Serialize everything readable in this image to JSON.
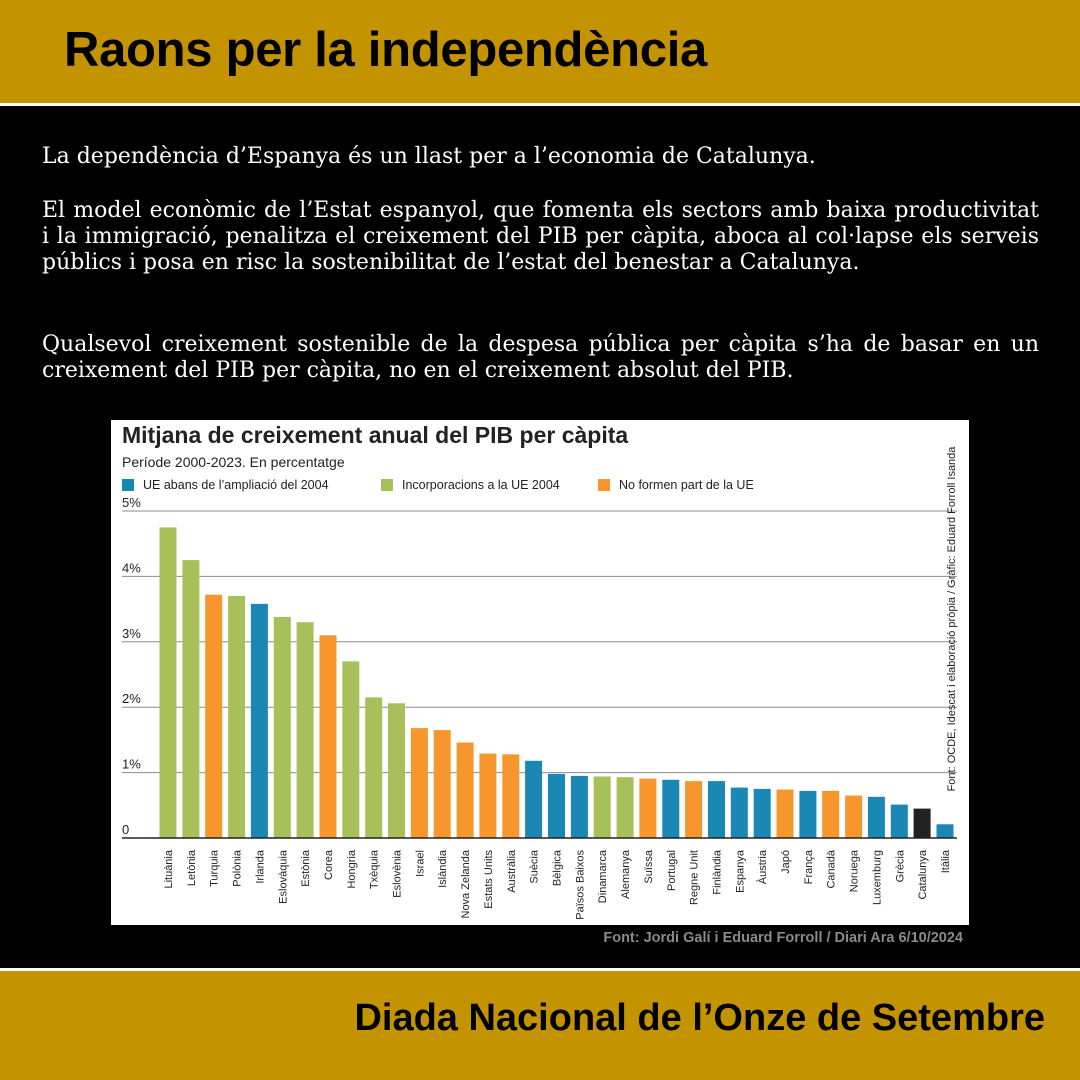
{
  "header": {
    "title": "Raons per la independència"
  },
  "paragraphs": [
    "La dependència d’Espanya és un llast per a l’economia de Catalunya.",
    "El model econòmic de l’Estat espanyol, que fomenta els sectors amb baixa productivitat i la immigració, penalitza el creixement del PIB per càpita, aboca al col·lapse els serveis públics i posa en risc la sostenibilitat de l’estat del benestar a Catalunya.",
    "Qualsevol creixement sostenible de la despesa pública per càpita s’ha de basar en un creixement del PIB per càpita, no en el creixement absolut del PIB."
  ],
  "chart_data": {
    "type": "bar",
    "title": "Mitjana de creixement anual del PIB per càpita",
    "subtitle": "Període 2000-2023. En percentatge",
    "source_vertical": "Font: OCDE, Idescat i elaboració pròpia / Gràfic: Eduard Forroll Isanda",
    "ylim": [
      0,
      5
    ],
    "yticks": [
      0,
      1,
      2,
      3,
      4,
      5
    ],
    "ytick_labels": [
      "0",
      "1%",
      "2%",
      "3%",
      "4%",
      "5%"
    ],
    "grid": true,
    "legend_position": "top-left",
    "groups": [
      {
        "key": "eu",
        "label": "UE abans de l’ampliació del 2004",
        "color": "#1a87b4"
      },
      {
        "key": "new",
        "label": "Incorporacions a la UE 2004",
        "color": "#a8c059"
      },
      {
        "key": "non",
        "label": "No formen part de la UE",
        "color": "#f7962d"
      },
      {
        "key": "cat",
        "label": "",
        "color": "#222222"
      }
    ],
    "categories": [
      "Lituània",
      "Letònia",
      "Turquia",
      "Polònia",
      "Irlanda",
      "Eslovàquia",
      "Estònia",
      "Corea",
      "Hongria",
      "Txèquia",
      "Eslovènia",
      "Israel",
      "Islàndia",
      "Nova Zelanda",
      "Estats Units",
      "Austràlia",
      "Suècia",
      "Bèlgica",
      "Països Baixos",
      "Dinamarca",
      "Alemanya",
      "Suïssa",
      "Portugal",
      "Regne Unit",
      "Finlàndia",
      "Espanya",
      "Àustria",
      "Japó",
      "França",
      "Canadà",
      "Noruega",
      "Luxemburg",
      "Grècia",
      "Catalunya",
      "Itàlia"
    ],
    "values": [
      4.75,
      4.25,
      3.72,
      3.7,
      3.58,
      3.38,
      3.3,
      3.1,
      2.7,
      2.15,
      2.06,
      1.68,
      1.65,
      1.46,
      1.29,
      1.28,
      1.18,
      0.98,
      0.95,
      0.94,
      0.93,
      0.91,
      0.89,
      0.87,
      0.87,
      0.77,
      0.75,
      0.74,
      0.72,
      0.72,
      0.65,
      0.63,
      0.51,
      0.45,
      0.21
    ],
    "groups_per_category": [
      "new",
      "new",
      "non",
      "new",
      "eu",
      "new",
      "new",
      "non",
      "new",
      "new",
      "new",
      "non",
      "non",
      "non",
      "non",
      "non",
      "eu",
      "eu",
      "eu",
      "new",
      "new",
      "non",
      "eu",
      "non",
      "eu",
      "eu",
      "eu",
      "non",
      "eu",
      "non",
      "non",
      "eu",
      "eu",
      "cat",
      "eu"
    ]
  },
  "credit": "Font: Jordi Galí i Eduard Forroll / Diari Ara 6/10/2024",
  "footer": {
    "title": "Diada Nacional de l’Onze de Setembre"
  }
}
